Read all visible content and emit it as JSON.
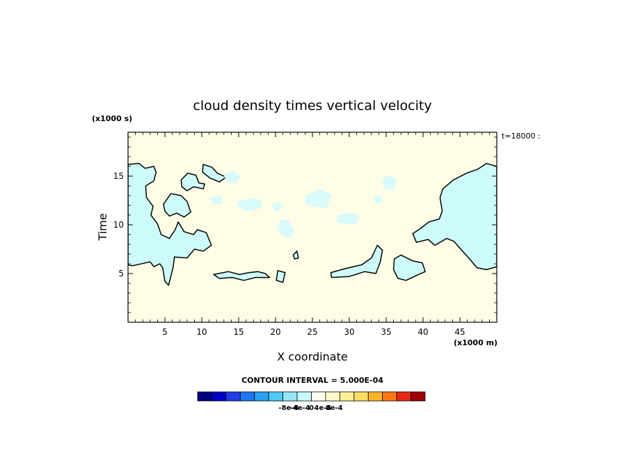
{
  "chart_data": {
    "type": "heatmap",
    "title": "cloud density times vertical velocity",
    "xlabel": "X coordinate",
    "ylabel": "Time",
    "x_unit": "(x1000 m)",
    "y_unit": "(x1000 s)",
    "time_stamp": "t=18000 :",
    "xlim": [
      0,
      50
    ],
    "ylim": [
      0,
      19.5
    ],
    "x_ticks": [
      5,
      10,
      15,
      20,
      25,
      30,
      35,
      40,
      45
    ],
    "y_ticks": [
      5,
      10,
      15
    ],
    "grid": false,
    "contour_interval_text": "CONTOUR INTERVAL = 5.000E-04",
    "contour_interval": 0.0005,
    "background_level": 5e-05,
    "colorbar": {
      "levels": 16,
      "colors": [
        "#000080",
        "#0000c8",
        "#1e40e6",
        "#1e78f0",
        "#28a0f0",
        "#50c8f8",
        "#96e6f8",
        "#c8f8f8",
        "#fffff0",
        "#fff8c8",
        "#fff096",
        "#ffdc64",
        "#ffb428",
        "#ff7814",
        "#e62814",
        "#a00000"
      ],
      "tick_labels": [
        "-8e-4",
        "-4e-4",
        "0",
        "4e-4",
        "8e-4"
      ],
      "tick_values": [
        -0.0008,
        -0.0004,
        0,
        0.0004,
        0.0008
      ]
    },
    "regions": [
      {
        "name": "left edge band",
        "fill": "#cdfafa",
        "contoured": true,
        "outline": [
          [
            0,
            16.2
          ],
          [
            1.5,
            16.3
          ],
          [
            2.3,
            15.8
          ],
          [
            3.5,
            16.0
          ],
          [
            3.8,
            15.4
          ],
          [
            3.5,
            14.5
          ],
          [
            2.4,
            14.0
          ],
          [
            2.5,
            12.8
          ],
          [
            3.4,
            11.9
          ],
          [
            3.1,
            11.0
          ],
          [
            4.0,
            10.1
          ],
          [
            4.5,
            9.0
          ],
          [
            5.6,
            8.6
          ],
          [
            6.4,
            9.5
          ],
          [
            6.8,
            10.3
          ],
          [
            7.6,
            9.3
          ],
          [
            8.9,
            9.0
          ],
          [
            9.4,
            9.5
          ],
          [
            10.6,
            9.2
          ],
          [
            11.3,
            7.9
          ],
          [
            10.2,
            7.3
          ],
          [
            9.0,
            7.5
          ],
          [
            8.0,
            6.6
          ],
          [
            6.3,
            6.7
          ],
          [
            6.1,
            5.6
          ],
          [
            5.5,
            3.8
          ],
          [
            5.0,
            4.2
          ],
          [
            4.7,
            5.6
          ],
          [
            4.3,
            6.0
          ],
          [
            3.5,
            5.7
          ],
          [
            3.0,
            6.2
          ],
          [
            0.6,
            5.8
          ],
          [
            0,
            5.9
          ]
        ]
      },
      {
        "name": "upper-left blob",
        "fill": "#cdfafa",
        "contoured": true,
        "outline": [
          [
            7.2,
            14.6
          ],
          [
            8.1,
            15.3
          ],
          [
            9.2,
            15.1
          ],
          [
            9.6,
            14.3
          ],
          [
            10.4,
            14.2
          ],
          [
            10.2,
            13.7
          ],
          [
            8.9,
            13.9
          ],
          [
            8.0,
            13.5
          ],
          [
            7.3,
            13.9
          ]
        ]
      },
      {
        "name": "mid-left blob",
        "fill": "#cdfafa",
        "contoured": true,
        "outline": [
          [
            4.8,
            12.1
          ],
          [
            5.8,
            13.2
          ],
          [
            7.2,
            13.0
          ],
          [
            8.0,
            12.4
          ],
          [
            8.5,
            11.3
          ],
          [
            7.6,
            10.8
          ],
          [
            6.6,
            11.2
          ],
          [
            5.6,
            10.9
          ],
          [
            5.0,
            11.4
          ]
        ]
      },
      {
        "name": "top-left streak",
        "fill": "#cdfafa",
        "contoured": true,
        "outline": [
          [
            10.2,
            16.2
          ],
          [
            11.4,
            15.9
          ],
          [
            12.1,
            15.3
          ],
          [
            13.3,
            14.9
          ],
          [
            12.4,
            14.4
          ],
          [
            11.1,
            14.8
          ],
          [
            10.1,
            15.4
          ]
        ]
      },
      {
        "name": "bottom streak 1",
        "fill": "#cdfafa",
        "contoured": true,
        "outline": [
          [
            11.6,
            4.9
          ],
          [
            13.6,
            5.2
          ],
          [
            15.1,
            4.9
          ],
          [
            16.4,
            5.1
          ],
          [
            17.6,
            5.2
          ],
          [
            18.6,
            5.0
          ],
          [
            19.2,
            4.6
          ],
          [
            17.3,
            4.6
          ],
          [
            15.7,
            4.3
          ],
          [
            14.1,
            4.6
          ],
          [
            12.4,
            4.5
          ]
        ]
      },
      {
        "name": "bottom streak 2",
        "fill": "#cdfafa",
        "contoured": true,
        "outline": [
          [
            20.3,
            5.3
          ],
          [
            21.3,
            5.1
          ],
          [
            21.0,
            4.1
          ],
          [
            20.1,
            4.3
          ]
        ]
      },
      {
        "name": "small cells",
        "fill": "#cdfafa",
        "contoured": true,
        "outline": [
          [
            22.4,
            6.9
          ],
          [
            22.9,
            7.3
          ],
          [
            23.1,
            6.6
          ],
          [
            22.6,
            6.5
          ]
        ]
      },
      {
        "name": "bottom streak 3",
        "fill": "#cdfafa",
        "contoured": true,
        "outline": [
          [
            27.5,
            5.1
          ],
          [
            29.4,
            5.5
          ],
          [
            31.7,
            5.9
          ],
          [
            33.0,
            6.6
          ],
          [
            33.8,
            7.9
          ],
          [
            34.5,
            7.4
          ],
          [
            34.2,
            6.2
          ],
          [
            33.6,
            5.0
          ],
          [
            32.1,
            5.2
          ],
          [
            30.0,
            4.7
          ],
          [
            27.6,
            4.6
          ]
        ]
      },
      {
        "name": "right blob 1",
        "fill": "#cdfafa",
        "contoured": true,
        "outline": [
          [
            36.1,
            6.5
          ],
          [
            37.0,
            6.9
          ],
          [
            38.6,
            6.3
          ],
          [
            39.9,
            6.1
          ],
          [
            40.3,
            5.2
          ],
          [
            39.1,
            4.8
          ],
          [
            37.7,
            4.3
          ],
          [
            36.6,
            4.5
          ],
          [
            36.0,
            5.4
          ]
        ]
      },
      {
        "name": "right region",
        "fill": "#cdfafa",
        "contoured": true,
        "outline": [
          [
            50,
            16.0
          ],
          [
            48.6,
            16.3
          ],
          [
            47.4,
            15.7
          ],
          [
            45.9,
            15.3
          ],
          [
            44.1,
            14.6
          ],
          [
            42.7,
            13.7
          ],
          [
            42.3,
            12.8
          ],
          [
            42.6,
            11.4
          ],
          [
            42.2,
            10.6
          ],
          [
            40.8,
            10.3
          ],
          [
            39.6,
            9.6
          ],
          [
            38.6,
            9.1
          ],
          [
            39.1,
            8.2
          ],
          [
            40.7,
            8.5
          ],
          [
            41.6,
            7.9
          ],
          [
            43.2,
            8.6
          ],
          [
            44.2,
            8.3
          ],
          [
            45.1,
            7.5
          ],
          [
            46.2,
            6.6
          ],
          [
            47.3,
            5.6
          ],
          [
            48.6,
            5.4
          ],
          [
            50,
            5.7
          ]
        ]
      },
      {
        "name": "pale cell 1",
        "fill": "#d8fafa",
        "contoured": false,
        "outline": [
          [
            12.9,
            15.2
          ],
          [
            14.3,
            15.5
          ],
          [
            15.3,
            15.0
          ],
          [
            14.6,
            14.3
          ],
          [
            13.5,
            14.3
          ]
        ]
      },
      {
        "name": "pale cell 2",
        "fill": "#d8fafa",
        "contoured": false,
        "outline": [
          [
            14.8,
            12.3
          ],
          [
            16.7,
            12.8
          ],
          [
            18.2,
            12.5
          ],
          [
            18.0,
            11.7
          ],
          [
            16.4,
            11.4
          ],
          [
            15.0,
            11.7
          ]
        ]
      },
      {
        "name": "pale cell 3",
        "fill": "#d8fafa",
        "contoured": false,
        "outline": [
          [
            24.2,
            13.1
          ],
          [
            26.1,
            13.6
          ],
          [
            27.6,
            13.1
          ],
          [
            27.0,
            11.7
          ],
          [
            25.2,
            11.9
          ],
          [
            24.0,
            12.2
          ]
        ]
      },
      {
        "name": "pale cell 4",
        "fill": "#d8fafa",
        "contoured": false,
        "outline": [
          [
            20.7,
            10.6
          ],
          [
            21.8,
            10.4
          ],
          [
            22.6,
            9.4
          ],
          [
            22.0,
            8.6
          ],
          [
            20.7,
            9.0
          ],
          [
            20.2,
            9.8
          ]
        ]
      },
      {
        "name": "pale cell 5",
        "fill": "#d8fafa",
        "contoured": false,
        "outline": [
          [
            28.4,
            11.0
          ],
          [
            30.1,
            11.3
          ],
          [
            31.5,
            10.9
          ],
          [
            31.0,
            10.1
          ],
          [
            29.4,
            10.1
          ],
          [
            28.2,
            10.3
          ]
        ]
      },
      {
        "name": "pale cell 6",
        "fill": "#d8fafa",
        "contoured": false,
        "outline": [
          [
            34.4,
            14.7
          ],
          [
            35.5,
            15.1
          ],
          [
            36.5,
            14.6
          ],
          [
            36.0,
            13.6
          ],
          [
            34.7,
            13.7
          ]
        ]
      },
      {
        "name": "pale cell 7",
        "fill": "#d8fafa",
        "contoured": false,
        "outline": [
          [
            33.2,
            12.9
          ],
          [
            34.2,
            13.1
          ],
          [
            34.6,
            12.4
          ],
          [
            33.6,
            12.2
          ]
        ]
      },
      {
        "name": "pale cell 8",
        "fill": "#d8fafa",
        "contoured": false,
        "outline": [
          [
            19.4,
            12.1
          ],
          [
            20.5,
            12.3
          ],
          [
            21.0,
            11.7
          ],
          [
            20.0,
            11.4
          ]
        ]
      },
      {
        "name": "pale cell 9",
        "fill": "#d8fafa",
        "contoured": false,
        "outline": [
          [
            11.1,
            12.8
          ],
          [
            12.6,
            13.0
          ],
          [
            12.9,
            12.2
          ],
          [
            11.6,
            12.0
          ]
        ]
      }
    ]
  }
}
